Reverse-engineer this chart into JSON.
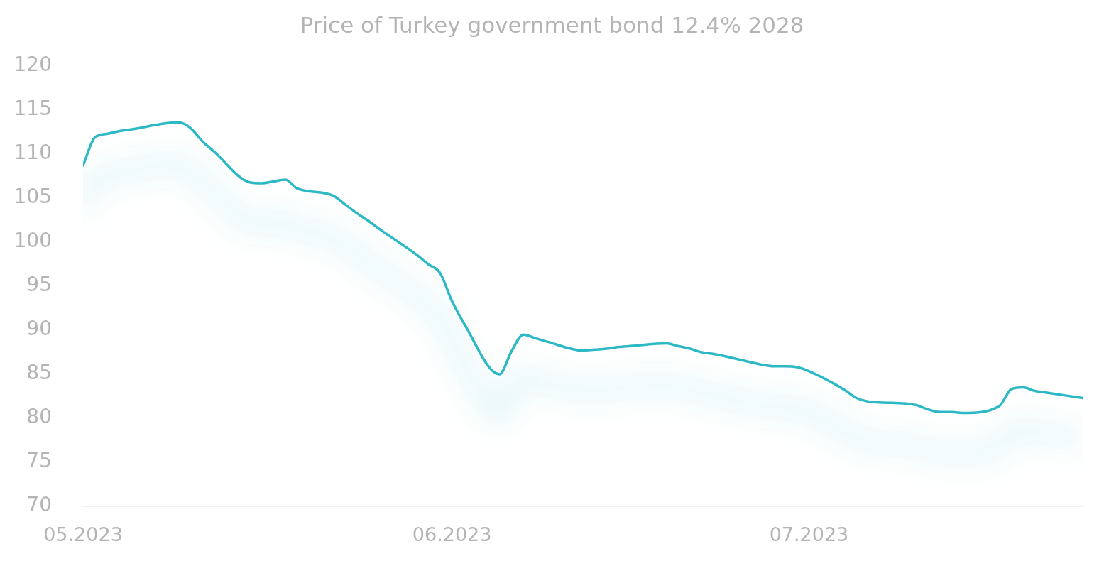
{
  "chart_data": {
    "type": "line",
    "title": "Price of Turkey government bond 12.4% 2028",
    "x": [
      "2023-05-01",
      "2023-05-02",
      "2023-05-03",
      "2023-05-04",
      "2023-05-05",
      "2023-05-08",
      "2023-05-09",
      "2023-05-10",
      "2023-05-11",
      "2023-05-12",
      "2023-05-15",
      "2023-05-16",
      "2023-05-17",
      "2023-05-18",
      "2023-05-19",
      "2023-05-22",
      "2023-05-23",
      "2023-05-24",
      "2023-05-25",
      "2023-05-26",
      "2023-05-29",
      "2023-05-30",
      "2023-05-31",
      "2023-06-01",
      "2023-06-02",
      "2023-06-05",
      "2023-06-06",
      "2023-06-07",
      "2023-06-08",
      "2023-06-09",
      "2023-06-12",
      "2023-06-13",
      "2023-06-14",
      "2023-06-15",
      "2023-06-16",
      "2023-06-19",
      "2023-06-20",
      "2023-06-21",
      "2023-06-22",
      "2023-06-23",
      "2023-06-26",
      "2023-06-27",
      "2023-06-28",
      "2023-06-29",
      "2023-06-30",
      "2023-07-03",
      "2023-07-04",
      "2023-07-05",
      "2023-07-06",
      "2023-07-07",
      "2023-07-10",
      "2023-07-11",
      "2023-07-12",
      "2023-07-13",
      "2023-07-14",
      "2023-07-17",
      "2023-07-18",
      "2023-07-19",
      "2023-07-20",
      "2023-07-21",
      "2023-07-24"
    ],
    "values": [
      108.7,
      111.9,
      112.3,
      112.6,
      112.8,
      113.5,
      113.6,
      113.0,
      111.5,
      110.3,
      106.8,
      106.7,
      106.9,
      107.1,
      106.1,
      105.3,
      104.3,
      103.3,
      102.4,
      101.4,
      98.6,
      97.5,
      96.5,
      93.3,
      90.8,
      85.0,
      87.6,
      89.5,
      89.1,
      88.7,
      87.7,
      87.8,
      87.9,
      88.1,
      88.2,
      88.5,
      88.2,
      87.9,
      87.5,
      87.3,
      86.4,
      86.1,
      85.9,
      85.9,
      85.8,
      84.0,
      83.2,
      82.3,
      81.9,
      81.8,
      81.5,
      81.0,
      80.7,
      80.7,
      80.6,
      81.4,
      83.3,
      83.5,
      83.1,
      82.9,
      82.3
    ],
    "color": "#2cb8c4",
    "xlim": [
      "2023-05-01",
      "2023-07-24"
    ],
    "xticks": [
      {
        "value": "2023-05-01",
        "label": "05.2023"
      },
      {
        "value": "2023-06-01",
        "label": "06.2023"
      },
      {
        "value": "2023-07-01",
        "label": "07.2023"
      }
    ],
    "ylim": [
      70,
      120
    ],
    "yticks": [
      70,
      75,
      80,
      85,
      90,
      95,
      100,
      105,
      110,
      115,
      120
    ],
    "grid": false,
    "legend": false,
    "marker": "none",
    "line_style": "solid"
  }
}
